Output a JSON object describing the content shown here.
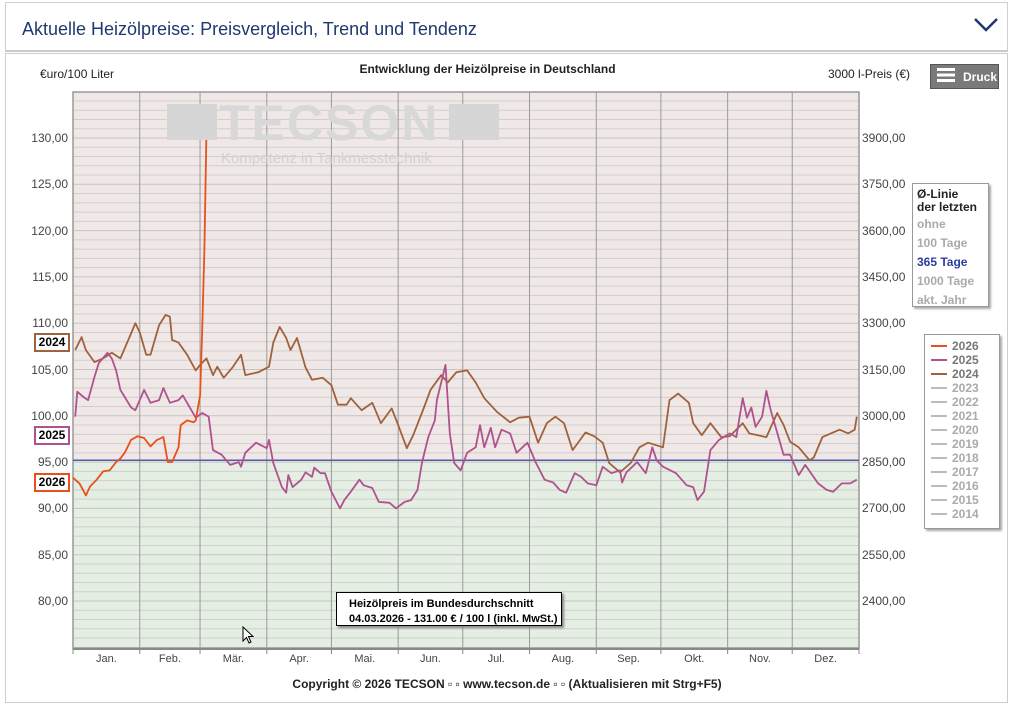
{
  "header": {
    "title": "Aktuelle Heizölpreise:  Preisvergleich, Trend und Tendenz",
    "icon": "chevron-down-icon"
  },
  "toolbar": {
    "print_label": "Druck",
    "print_icon": "menu-icon"
  },
  "watermark": {
    "logo": "TECSON",
    "slogan": "Kompetenz in Tankmesstechnik"
  },
  "avg_selector": {
    "title_line1": "Ø-Linie",
    "title_line2": "der letzten",
    "options": [
      "ohne",
      "100 Tage",
      "365 Tage",
      "1000 Tage",
      "akt. Jahr"
    ],
    "selected": "365 Tage",
    "selected_color": "#2b3d9e"
  },
  "tooltip": {
    "line1": "Heizölpreis im Bundesdurchschnitt",
    "line2": "04.03.2026 - 131.00 € / 100 l (inkl. MwSt.)"
  },
  "copyright": "Copyright © 2026 TECSON ▫ ▫ www.tecson.de ▫ ▫ (Aktualisieren mit Strg+F5)",
  "year_badges": [
    "2024",
    "2025",
    "2026"
  ],
  "chart_data": {
    "type": "line",
    "title": "Entwicklung der Heizölpreise in Deutschland",
    "ylabel": "€uro/100 Liter",
    "y2label": "3000 l-Preis (€)",
    "ylim": [
      75.2,
      135.2
    ],
    "y_ticks": [
      "130,00",
      "125,00",
      "120,00",
      "115,00",
      "110,00",
      "105,00",
      "100,00",
      "95,00",
      "90,00",
      "85,00",
      "80,00"
    ],
    "y_tick_values": [
      130,
      125,
      120,
      115,
      110,
      105,
      100,
      95,
      90,
      85,
      80
    ],
    "y2_ticks": [
      "3900,00",
      "3750,00",
      "3600,00",
      "3450,00",
      "3300,00",
      "3150,00",
      "3000,00",
      "2850,00",
      "2700,00",
      "2550,00",
      "2400,00"
    ],
    "x_ticks": [
      "Jan.",
      "Feb.",
      "Mär.",
      "Apr.",
      "Mai.",
      "Jun.",
      "Jul.",
      "Aug.",
      "Sep.",
      "Okt.",
      "Nov.",
      "Dez."
    ],
    "grid": true,
    "legend_position": "right",
    "legend": [
      "2026",
      "2025",
      "2024",
      "2023",
      "2022",
      "2021",
      "2020",
      "2019",
      "2018",
      "2017",
      "2016",
      "2015",
      "2014"
    ],
    "legend_active": [
      "2026",
      "2025",
      "2024"
    ],
    "average_line": {
      "label": "365 Tage",
      "value": 95.2,
      "color": "#5a5aa8"
    },
    "colors": {
      "2026": "#e8501c",
      "2025": "#b0528e",
      "2024": "#a0623c",
      "inactive": "#bbbbbb",
      "above_avg": "#f0e8e6",
      "below_avg": "#e4eee2"
    },
    "series": [
      {
        "name": "2024",
        "x": [
          "01-02",
          "01-05",
          "01-07",
          "01-11",
          "01-15",
          "01-19",
          "01-23",
          "01-28",
          "01-30",
          "02-01",
          "02-04",
          "02-06",
          "02-10",
          "02-13",
          "02-15",
          "02-16",
          "02-19",
          "02-23",
          "02-27",
          "03-01",
          "03-04",
          "03-07",
          "03-09",
          "03-12",
          "03-16",
          "03-20",
          "03-22",
          "03-28",
          "04-02",
          "04-04",
          "04-07",
          "04-10",
          "04-12",
          "04-15",
          "04-19",
          "04-22",
          "04-27",
          "05-01",
          "05-04",
          "05-08",
          "05-10",
          "05-15",
          "05-20",
          "05-24",
          "05-29",
          "06-01",
          "06-05",
          "06-08",
          "06-13",
          "06-16",
          "06-21",
          "06-24",
          "06-28",
          "07-03",
          "07-07",
          "07-11",
          "07-17",
          "07-23",
          "07-27",
          "08-01",
          "08-05",
          "08-09",
          "08-13",
          "08-17",
          "08-21",
          "08-27",
          "08-31",
          "09-04",
          "09-07",
          "09-12",
          "09-17",
          "09-21",
          "09-25",
          "10-02",
          "10-05",
          "10-09",
          "10-14",
          "10-16",
          "10-20",
          "10-24",
          "10-29",
          "11-02",
          "11-08",
          "11-11",
          "11-19",
          "11-24",
          "11-27",
          "11-30",
          "12-04",
          "12-09",
          "12-11",
          "12-15",
          "12-23",
          "12-27",
          "12-30",
          "12-31"
        ],
        "values": [
          107.1,
          108.5,
          107.1,
          105.8,
          106.2,
          106.8,
          106.2,
          108.9,
          110.0,
          109.0,
          106.6,
          106.6,
          109.8,
          110.9,
          110.7,
          108.2,
          107.9,
          106.6,
          104.9,
          105.5,
          106.2,
          104.4,
          105.3,
          104.1,
          105.2,
          106.6,
          104.4,
          104.7,
          105.3,
          107.9,
          109.6,
          108.4,
          107.1,
          108.4,
          105.2,
          103.9,
          104.1,
          103.3,
          101.2,
          101.2,
          101.9,
          100.6,
          101.4,
          99.2,
          100.8,
          99.0,
          96.5,
          97.9,
          100.9,
          102.8,
          104.4,
          103.6,
          104.7,
          104.9,
          103.6,
          101.9,
          100.4,
          99.3,
          99.8,
          99.9,
          97.1,
          99.2,
          99.9,
          99.2,
          96.3,
          98.2,
          97.8,
          97.1,
          94.9,
          93.9,
          94.9,
          96.6,
          97.1,
          96.6,
          101.7,
          102.4,
          101.4,
          99.2,
          97.9,
          99.2,
          97.7,
          97.8,
          99.2,
          98.1,
          97.7,
          100.3,
          99.0,
          97.2,
          96.6,
          95.2,
          95.5,
          97.7,
          98.5,
          98.1,
          98.5,
          99.9
        ]
      },
      {
        "name": "2025",
        "x": [
          "01-02",
          "01-03",
          "01-06",
          "01-08",
          "01-11",
          "01-13",
          "01-17",
          "01-19",
          "01-21",
          "01-23",
          "01-28",
          "01-30",
          "02-03",
          "02-06",
          "02-10",
          "02-12",
          "02-15",
          "02-19",
          "02-21",
          "02-25",
          "02-27",
          "03-02",
          "03-05",
          "03-07",
          "03-11",
          "03-15",
          "03-19",
          "03-20",
          "03-22",
          "03-27",
          "04-01",
          "04-02",
          "04-04",
          "04-08",
          "04-10",
          "04-11",
          "04-13",
          "04-17",
          "04-19",
          "04-22",
          "04-23",
          "04-26",
          "04-28",
          "05-01",
          "05-05",
          "05-07",
          "05-10",
          "05-14",
          "05-16",
          "05-20",
          "05-23",
          "05-28",
          "05-31",
          "06-04",
          "06-07",
          "06-10",
          "06-12",
          "06-15",
          "06-18",
          "06-19",
          "06-23",
          "06-25",
          "06-27",
          "06-30",
          "07-03",
          "07-07",
          "07-09",
          "07-11",
          "07-14",
          "07-16",
          "07-19",
          "07-23",
          "07-26",
          "07-31",
          "08-04",
          "08-08",
          "08-12",
          "08-15",
          "08-18",
          "08-22",
          "08-25",
          "08-28",
          "09-01",
          "09-04",
          "09-08",
          "09-12",
          "09-13",
          "09-15",
          "09-20",
          "09-24",
          "09-27",
          "09-29",
          "10-02",
          "10-08",
          "10-13",
          "10-16",
          "10-18",
          "10-21",
          "10-24",
          "10-28",
          "11-02",
          "11-05",
          "11-08",
          "11-10",
          "11-12",
          "11-14",
          "11-17",
          "11-19",
          "11-21",
          "11-27",
          "11-30",
          "12-04",
          "12-07",
          "12-13",
          "12-17",
          "12-20",
          "12-24",
          "12-28",
          "12-31"
        ],
        "values": [
          99.9,
          102.6,
          102.0,
          101.7,
          104.2,
          105.7,
          106.8,
          106.2,
          104.9,
          102.8,
          100.9,
          100.6,
          102.8,
          101.4,
          101.7,
          103.0,
          101.4,
          101.7,
          102.2,
          100.6,
          99.8,
          100.3,
          99.9,
          96.3,
          95.8,
          94.7,
          95.0,
          94.5,
          96.0,
          97.1,
          96.5,
          97.4,
          94.9,
          92.3,
          91.7,
          93.6,
          92.3,
          93.1,
          93.9,
          93.4,
          94.4,
          93.8,
          93.8,
          91.8,
          90.0,
          90.9,
          91.8,
          93.1,
          92.5,
          92.2,
          90.7,
          90.6,
          90.0,
          90.7,
          90.9,
          92.0,
          94.9,
          97.7,
          99.5,
          101.7,
          105.5,
          98.1,
          94.9,
          94.1,
          96.0,
          96.6,
          99.0,
          96.6,
          98.7,
          96.6,
          98.5,
          98.1,
          96.0,
          97.1,
          94.9,
          93.1,
          92.8,
          92.0,
          91.7,
          93.8,
          93.4,
          92.7,
          92.5,
          94.5,
          93.8,
          94.1,
          92.8,
          93.9,
          95.0,
          93.8,
          96.6,
          95.2,
          94.5,
          93.8,
          92.5,
          92.3,
          90.9,
          91.8,
          96.3,
          97.4,
          98.1,
          97.7,
          101.9,
          99.8,
          100.9,
          98.8,
          99.9,
          102.7,
          100.6,
          95.8,
          95.8,
          93.6,
          94.7,
          92.7,
          92.0,
          91.8,
          92.7,
          92.7,
          93.1
        ]
      },
      {
        "name": "2026",
        "x": [
          "01-01",
          "01-04",
          "01-07",
          "01-09",
          "01-12",
          "01-15",
          "01-18",
          "01-21",
          "01-23",
          "01-25",
          "01-28",
          "01-31",
          "02-03",
          "02-06",
          "02-09",
          "02-12",
          "02-14",
          "02-16",
          "02-19",
          "02-20",
          "02-23",
          "02-26",
          "02-27",
          "03-01",
          "03-02",
          "03-03",
          "03-04"
        ],
        "values": [
          93.3,
          92.7,
          91.4,
          92.4,
          93.1,
          94.0,
          94.1,
          95.0,
          95.4,
          96.0,
          97.4,
          97.8,
          97.6,
          96.7,
          97.4,
          97.7,
          95.0,
          95.0,
          96.6,
          99.0,
          99.5,
          99.3,
          99.5,
          102.2,
          109.3,
          117.9,
          131.0
        ]
      }
    ]
  }
}
